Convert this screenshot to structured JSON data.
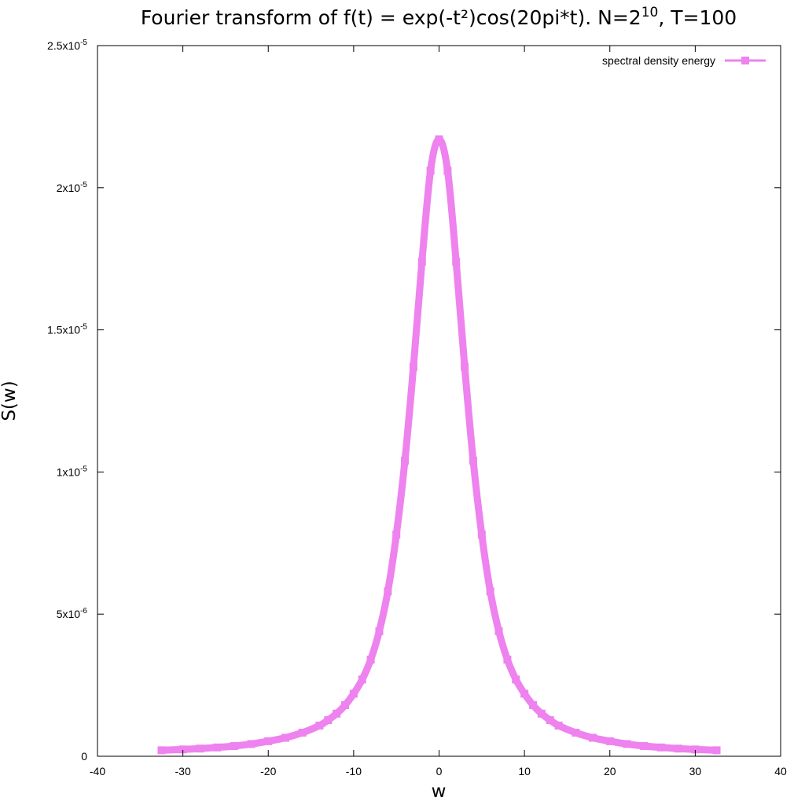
{
  "chart_data": {
    "type": "line",
    "title": {
      "main": "Fourier transform of f(t) = exp(-t²)cos(20pi*t). N=2",
      "sup": "10",
      "tail": ", T=100"
    },
    "xlabel": "w",
    "ylabel": "S(w)",
    "xlim": [
      -40,
      40
    ],
    "ylim": [
      0,
      2.5e-05
    ],
    "grid": false,
    "legend_position": "top-right",
    "x_ticks": [
      {
        "value": -40,
        "label": "-40"
      },
      {
        "value": -30,
        "label": "-30"
      },
      {
        "value": -20,
        "label": "-20"
      },
      {
        "value": -10,
        "label": "-10"
      },
      {
        "value": 0,
        "label": "0"
      },
      {
        "value": 10,
        "label": "10"
      },
      {
        "value": 20,
        "label": "20"
      },
      {
        "value": 30,
        "label": "30"
      },
      {
        "value": 40,
        "label": "40"
      }
    ],
    "y_ticks": [
      {
        "value": 0,
        "base": "0",
        "exp": ""
      },
      {
        "value": 5e-06,
        "base": "5x10",
        "exp": "-6"
      },
      {
        "value": 1e-05,
        "base": "1x10",
        "exp": "-5"
      },
      {
        "value": 1.5e-05,
        "base": "1.5x10",
        "exp": "-5"
      },
      {
        "value": 2e-05,
        "base": "2x10",
        "exp": "-5"
      },
      {
        "value": 2.5e-05,
        "base": "2.5x10",
        "exp": "-5"
      }
    ],
    "series": [
      {
        "name": "spectral density energy",
        "color": "#ee82ee",
        "x": [
          -32.5,
          -30,
          -28,
          -26,
          -24,
          -22,
          -20,
          -18,
          -16,
          -14,
          -13,
          -12,
          -11,
          -10,
          -9,
          -8,
          -7,
          -6,
          -5,
          -4,
          -3,
          -2,
          -1,
          0,
          1,
          2,
          3,
          4,
          5,
          6,
          7,
          8,
          9,
          10,
          11,
          12,
          13,
          14,
          16,
          18,
          20,
          22,
          24,
          26,
          28,
          30,
          32.5
        ],
        "y": [
          2.1e-07,
          2.4e-07,
          2.7e-07,
          3.1e-07,
          3.6e-07,
          4.3e-07,
          5.3e-07,
          6.5e-07,
          8.3e-07,
          1.08e-06,
          1.27e-06,
          1.5e-06,
          1.8e-06,
          2.2e-06,
          2.7e-06,
          3.4e-06,
          4.4e-06,
          5.8e-06,
          7.8e-06,
          1.04e-05,
          1.37e-05,
          1.74e-05,
          2.06e-05,
          2.17e-05,
          2.06e-05,
          1.74e-05,
          1.37e-05,
          1.04e-05,
          7.8e-06,
          5.8e-06,
          4.4e-06,
          3.4e-06,
          2.7e-06,
          2.2e-06,
          1.8e-06,
          1.5e-06,
          1.27e-06,
          1.08e-06,
          8.3e-07,
          6.5e-07,
          5.3e-07,
          4.3e-07,
          3.6e-07,
          3.1e-07,
          2.7e-07,
          2.4e-07,
          2.1e-07
        ]
      }
    ]
  }
}
